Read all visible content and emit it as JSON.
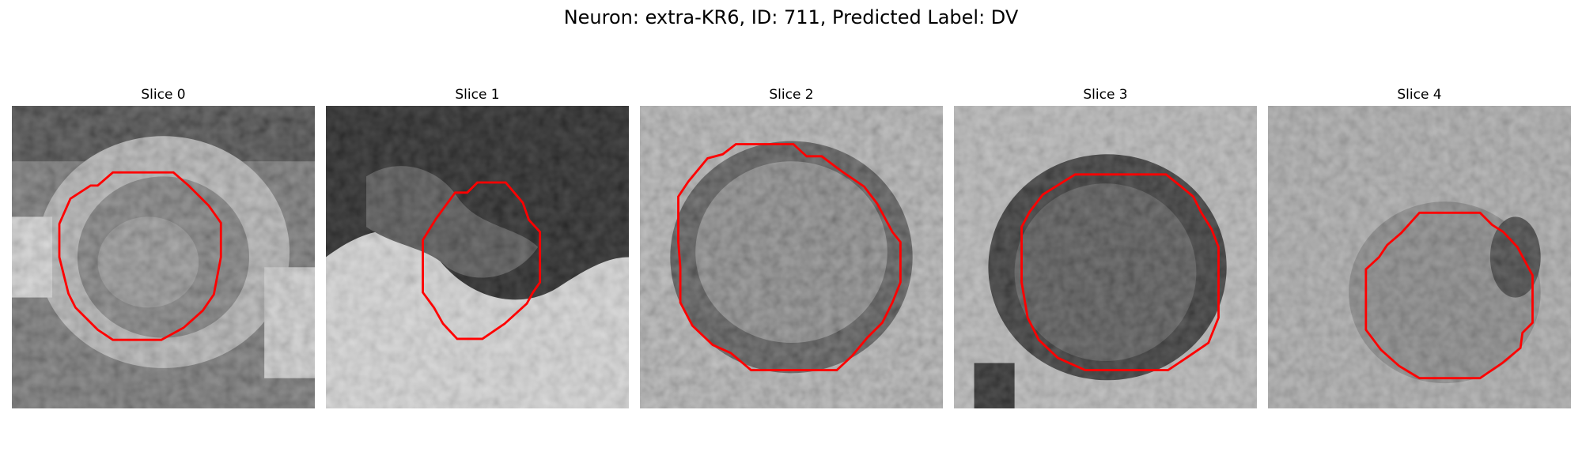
{
  "title": "Neuron: extra-KR6, ID: 711, Predicted Label: DV",
  "colors": {
    "contour": "#ff0000"
  },
  "panels": [
    {
      "title": "Slice 0"
    },
    {
      "title": "Slice 1"
    },
    {
      "title": "Slice 2"
    },
    {
      "title": "Slice 3"
    },
    {
      "title": "Slice 4"
    }
  ]
}
